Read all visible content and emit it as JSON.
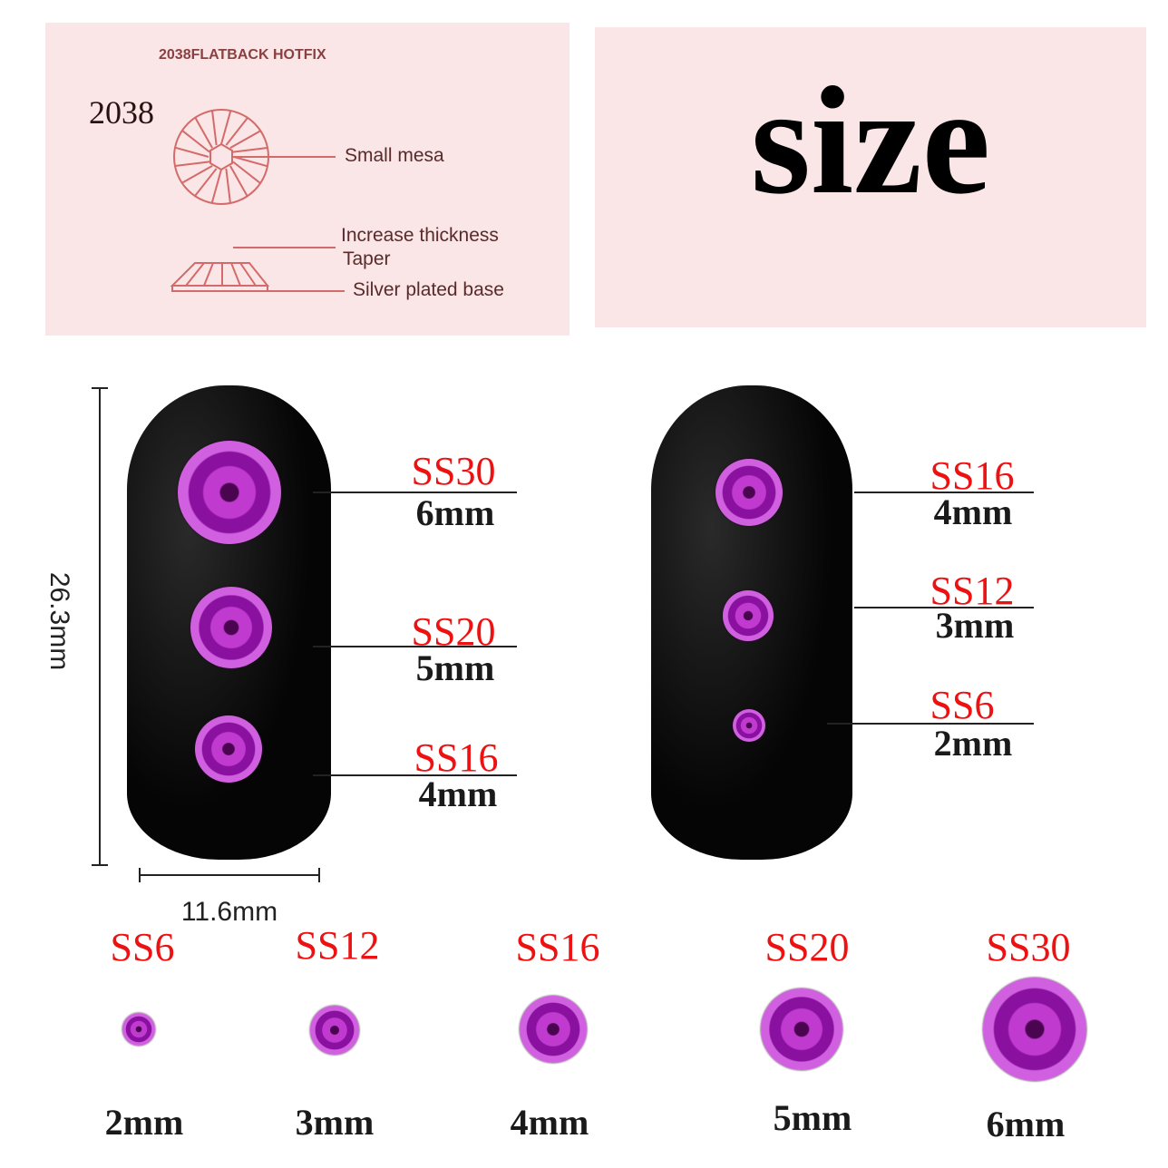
{
  "diagram_panel": {
    "heading": "2038FLATBACK HOTFIX",
    "model": "2038",
    "labels": [
      "Small mesa",
      "Increase thickness",
      "Taper",
      "Silver plated base"
    ]
  },
  "title": "size",
  "dimensions": {
    "height": "26.3mm",
    "width": "11.6mm"
  },
  "nail_left": [
    {
      "size": "SS30",
      "mm": "6mm"
    },
    {
      "size": "SS20",
      "mm": "5mm"
    },
    {
      "size": "SS16",
      "mm": "4mm"
    }
  ],
  "nail_right": [
    {
      "size": "SS16",
      "mm": "4mm"
    },
    {
      "size": "SS12",
      "mm": "3mm"
    },
    {
      "size": "SS6",
      "mm": "2mm"
    }
  ],
  "bottom_row": [
    {
      "size": "SS6",
      "mm": "2mm"
    },
    {
      "size": "SS12",
      "mm": "3mm"
    },
    {
      "size": "SS16",
      "mm": "4mm"
    },
    {
      "size": "SS20",
      "mm": "5mm"
    },
    {
      "size": "SS30",
      "mm": "6mm"
    }
  ],
  "colors": {
    "label_red": "#ee1111",
    "panel_bg": "#fae6e6",
    "diagram_line": "#d46a6a",
    "gem": "#b020c0"
  }
}
